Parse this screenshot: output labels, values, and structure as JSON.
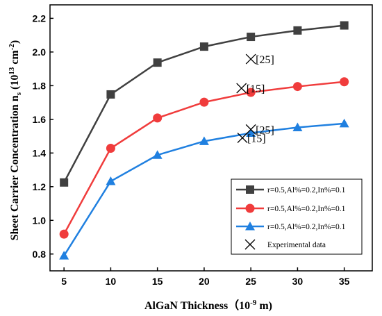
{
  "chart_data": {
    "type": "line",
    "xlabel": "AlGaN Thickness（10",
    "xlabel_exp": "-9",
    "xlabel_tail": " m)",
    "ylabel": "Sheet Carrier Concentration n",
    "ylabel_sub": "s",
    "ylabel_mid": " (10",
    "ylabel_exp1": "13",
    "ylabel_mid2": " cm",
    "ylabel_exp2": "-2",
    "ylabel_end": ")",
    "x": [
      5,
      10,
      15,
      20,
      25,
      30,
      35
    ],
    "xlim": [
      3.5,
      38
    ],
    "ylim": [
      0.7,
      2.28
    ],
    "x_ticks": [
      "5",
      "10",
      "15",
      "20",
      "25",
      "30",
      "35"
    ],
    "y_ticks": [
      "0.8",
      "1.0",
      "1.2",
      "1.4",
      "1.6",
      "1.8",
      "2.0",
      "2.2"
    ],
    "series": [
      {
        "name": "r=0.5,Al%=0.2,In%=0.1",
        "color": "#404040",
        "marker": "square",
        "values": [
          1.225,
          1.748,
          1.937,
          2.032,
          2.09,
          2.128,
          2.158
        ]
      },
      {
        "name": "r=0.5,Al%=0.2,In%=0.1",
        "color": "#f03c3c",
        "marker": "circle",
        "values": [
          0.918,
          1.428,
          1.608,
          1.702,
          1.76,
          1.795,
          1.823
        ]
      },
      {
        "name": "r=0.5,Al%=0.2,In%=0.1",
        "color": "#2080e0",
        "marker": "triangle",
        "values": [
          0.79,
          1.232,
          1.388,
          1.47,
          1.519,
          1.552,
          1.575
        ]
      }
    ],
    "experimental": {
      "name": "Experimental data",
      "points": [
        {
          "x": 25,
          "y": 1.958,
          "label": "[25]"
        },
        {
          "x": 24.0,
          "y": 1.785,
          "label": "[15]"
        },
        {
          "x": 25,
          "y": 1.54,
          "label": "[25]"
        },
        {
          "x": 24.1,
          "y": 1.49,
          "label": "[15]"
        }
      ]
    },
    "legend_position": "bottom-right",
    "grid": false
  }
}
